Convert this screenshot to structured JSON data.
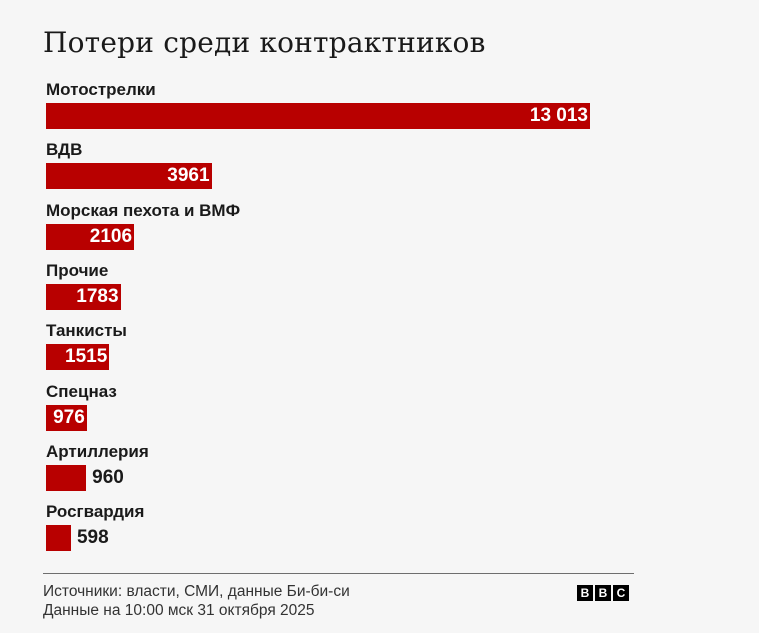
{
  "chart_data": {
    "type": "bar",
    "orientation": "horizontal",
    "title": "Потери среди контрактников",
    "categories": [
      "Мотострелки",
      "ВДВ",
      "Морская пехота и ВМФ",
      "Прочие",
      "Танкисты",
      "Спецназ",
      "Артиллерия",
      "Росгвардия"
    ],
    "values": [
      13013,
      3961,
      2106,
      1783,
      1515,
      976,
      960,
      598
    ],
    "value_labels": [
      "13 013",
      "3961",
      "2106",
      "1783",
      "1515",
      "976",
      "960",
      "598"
    ],
    "xlim": [
      0,
      13013
    ],
    "bar_color": "#b80000",
    "grid": false,
    "legend": false
  },
  "footer": {
    "source": "Источники: власти, СМИ, данные Би-би-си",
    "date": "Данные на 10:00 мск 31 октября 2025"
  },
  "logo": {
    "letters": [
      "B",
      "B",
      "C"
    ]
  }
}
